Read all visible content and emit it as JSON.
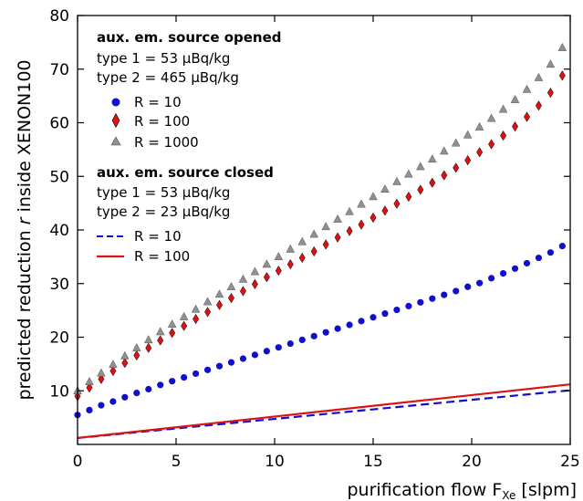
{
  "chart_data": {
    "type": "scatter",
    "title": "",
    "xlabel": "purification flow F_Xe [slpm]",
    "xlabel_main": "purification flow F",
    "xlabel_sub": "Xe",
    "xlabel_unit": "[slpm]",
    "ylabel": "predicted reduction r inside XENON100",
    "ylabel_pre": "predicted reduction ",
    "ylabel_var": "r",
    "ylabel_post": " inside XENON100",
    "xlim": [
      0,
      25
    ],
    "ylim": [
      0,
      80
    ],
    "xticks": [
      "0",
      "5",
      "10",
      "15",
      "20",
      "25"
    ],
    "yticks": [
      "10",
      "20",
      "30",
      "40",
      "50",
      "60",
      "70",
      "80"
    ],
    "grid": false,
    "legend_position": "top-left",
    "legend": {
      "opened_title": "aux. em. source opened",
      "opened_line1": "type 1 = 53 µBq/kg",
      "opened_line2": "type 2 = 465 µBq/kg",
      "closed_title": "aux. em. source closed",
      "closed_line1": "type 1 = 53 µBq/kg",
      "closed_line2": "type 2 = 23 µBq/kg"
    },
    "series": [
      {
        "name": "R = 10",
        "group": "opened",
        "style": "circle",
        "color": "#1010cc",
        "x": [
          0,
          0.6,
          1.2,
          1.8,
          2.4,
          3.0,
          3.6,
          4.2,
          4.8,
          5.4,
          6.0,
          6.6,
          7.2,
          7.8,
          8.4,
          9.0,
          9.6,
          10.2,
          10.8,
          11.4,
          12.0,
          12.6,
          13.2,
          13.8,
          14.4,
          15.0,
          15.6,
          16.2,
          16.8,
          17.4,
          18.0,
          18.6,
          19.2,
          19.8,
          20.4,
          21.0,
          21.6,
          22.2,
          22.8,
          23.4,
          24.0,
          24.6
        ],
        "y": [
          5.5,
          6.4,
          7.3,
          8.0,
          8.8,
          9.6,
          10.3,
          11.1,
          11.8,
          12.5,
          13.2,
          13.9,
          14.6,
          15.3,
          16.0,
          16.7,
          17.4,
          18.1,
          18.8,
          19.5,
          20.2,
          20.9,
          21.6,
          22.3,
          23.0,
          23.7,
          24.4,
          25.1,
          25.8,
          26.5,
          27.2,
          27.9,
          28.6,
          29.4,
          30.1,
          31.0,
          31.9,
          32.8,
          33.8,
          34.8,
          35.8,
          37.0
        ]
      },
      {
        "name": "R = 100",
        "group": "opened",
        "style": "diamond",
        "color": "#dd1111",
        "x": [
          0,
          0.6,
          1.2,
          1.8,
          2.4,
          3.0,
          3.6,
          4.2,
          4.8,
          5.4,
          6.0,
          6.6,
          7.2,
          7.8,
          8.4,
          9.0,
          9.6,
          10.2,
          10.8,
          11.4,
          12.0,
          12.6,
          13.2,
          13.8,
          14.4,
          15.0,
          15.6,
          16.2,
          16.8,
          17.4,
          18.0,
          18.6,
          19.2,
          19.8,
          20.4,
          21.0,
          21.6,
          22.2,
          22.8,
          23.4,
          24.0,
          24.6
        ],
        "y": [
          9.0,
          10.6,
          12.2,
          13.7,
          15.2,
          16.6,
          18.0,
          19.4,
          20.8,
          22.1,
          23.4,
          24.7,
          26.0,
          27.3,
          28.6,
          29.9,
          31.2,
          32.4,
          33.6,
          34.8,
          36.0,
          37.3,
          38.6,
          39.8,
          41.0,
          42.3,
          43.6,
          44.9,
          46.2,
          47.5,
          48.8,
          50.2,
          51.6,
          53.0,
          54.5,
          56.0,
          57.6,
          59.3,
          61.1,
          63.2,
          65.6,
          68.8
        ]
      },
      {
        "name": "R = 1000",
        "group": "opened",
        "style": "triangle",
        "color": "#909090",
        "x": [
          0,
          0.6,
          1.2,
          1.8,
          2.4,
          3.0,
          3.6,
          4.2,
          4.8,
          5.4,
          6.0,
          6.6,
          7.2,
          7.8,
          8.4,
          9.0,
          9.6,
          10.2,
          10.8,
          11.4,
          12.0,
          12.6,
          13.2,
          13.8,
          14.4,
          15.0,
          15.6,
          16.2,
          16.8,
          17.4,
          18.0,
          18.6,
          19.2,
          19.8,
          20.4,
          21.0,
          21.6,
          22.2,
          22.8,
          23.4,
          24.0,
          24.6
        ],
        "y": [
          10.0,
          11.7,
          13.3,
          14.9,
          16.5,
          18.0,
          19.5,
          21.0,
          22.4,
          23.8,
          25.2,
          26.6,
          28.0,
          29.4,
          30.8,
          32.2,
          33.6,
          35.0,
          36.4,
          37.8,
          39.2,
          40.6,
          42.0,
          43.4,
          44.8,
          46.2,
          47.6,
          49.0,
          50.4,
          51.8,
          53.2,
          54.7,
          56.2,
          57.7,
          59.2,
          60.8,
          62.5,
          64.3,
          66.2,
          68.4,
          70.9,
          74.0
        ]
      },
      {
        "name": "R = 10",
        "group": "closed",
        "style": "dashed",
        "color": "#1010cc",
        "x": [
          0,
          25
        ],
        "y": [
          1.2,
          10.1
        ]
      },
      {
        "name": "R = 100",
        "group": "closed",
        "style": "solid",
        "color": "#dd1111",
        "x": [
          0,
          25
        ],
        "y": [
          1.2,
          11.2
        ]
      }
    ]
  }
}
